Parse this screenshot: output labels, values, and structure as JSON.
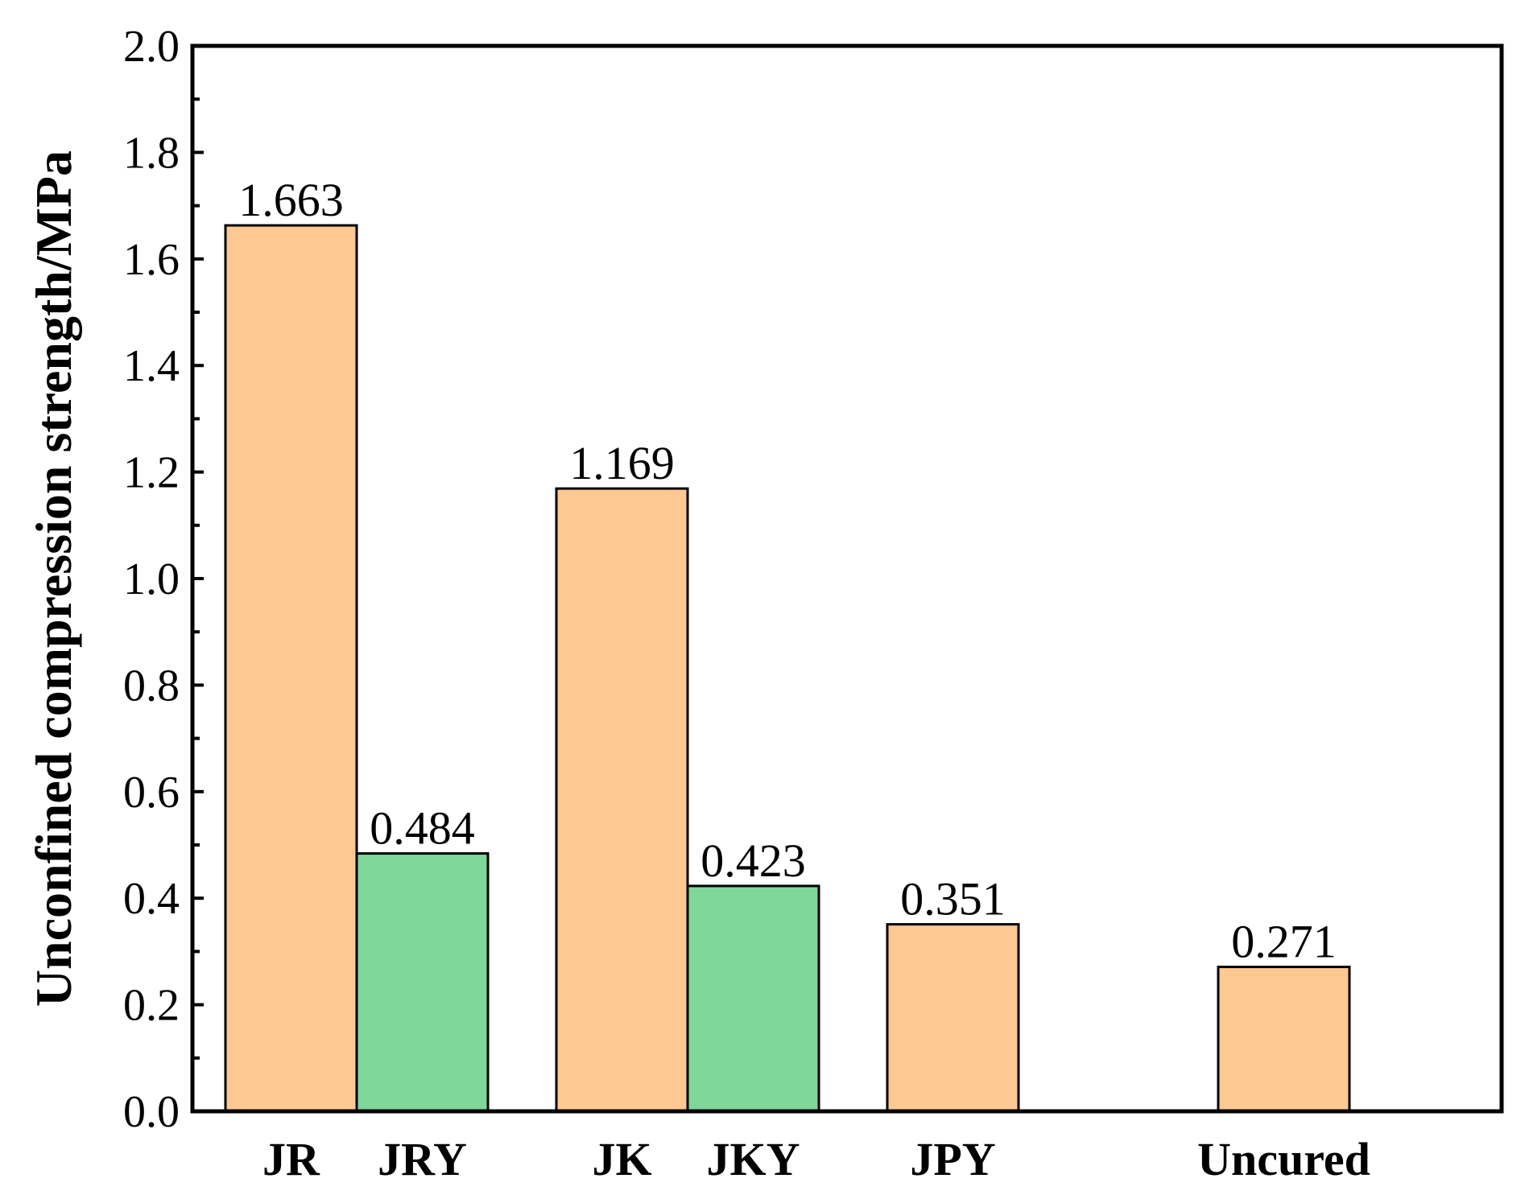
{
  "chart_data": {
    "type": "bar",
    "title": "",
    "xlabel": "",
    "ylabel": "Unconfined compression strength/MPa",
    "ylim": [
      0,
      2.0
    ],
    "yticks": [
      "0.0",
      "0.2",
      "0.4",
      "0.6",
      "0.8",
      "1.0",
      "1.2",
      "1.4",
      "1.6",
      "1.8",
      "2.0"
    ],
    "grid": false,
    "legend": "none",
    "categories": [
      "JR",
      "JRY",
      "JK",
      "JKY",
      "JPY",
      "Uncured"
    ],
    "values": [
      1.663,
      0.484,
      1.169,
      0.423,
      0.351,
      0.271
    ],
    "value_labels": [
      "1.663",
      "0.484",
      "1.169",
      "0.423",
      "0.351",
      "0.271"
    ],
    "bar_colors": [
      "#fec893",
      "#7fd79a",
      "#fec893",
      "#7fd79a",
      "#fec893",
      "#fec893"
    ]
  }
}
